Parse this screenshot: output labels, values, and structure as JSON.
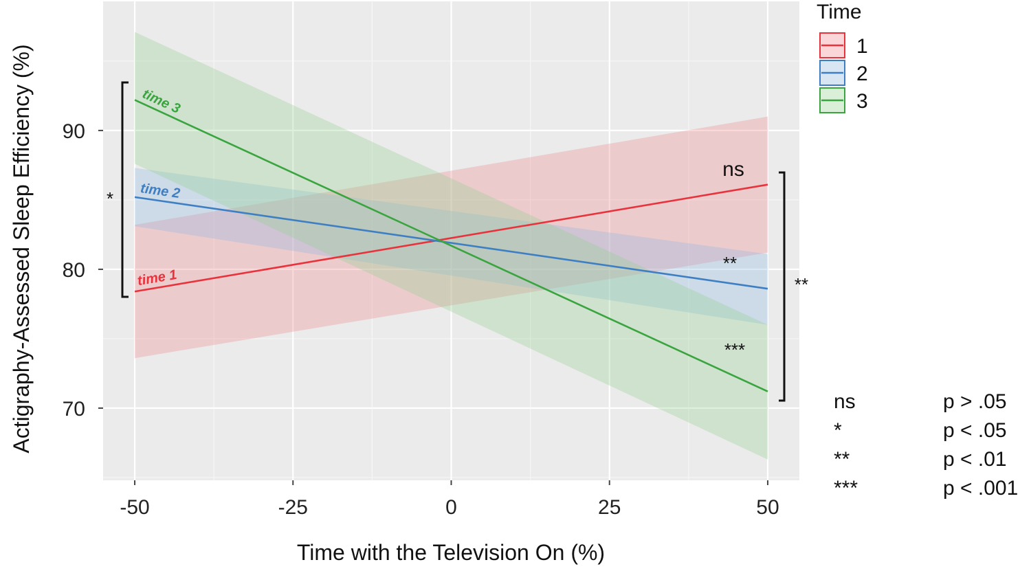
{
  "chart_data": {
    "type": "line",
    "title": "",
    "xlabel": "Time with the Television On (%)",
    "ylabel": "Actigraphy-Assessed Sleep Efficiency (%)",
    "xlim": [
      -55,
      55
    ],
    "ylim": [
      64.8,
      99.3
    ],
    "x_ticks": [
      -50,
      -25,
      0,
      25,
      50
    ],
    "x_tick_labels": [
      "-50",
      "-25",
      "0",
      "25",
      "50"
    ],
    "y_ticks": [
      70,
      80,
      90
    ],
    "y_tick_labels": [
      "70",
      "80",
      "90"
    ],
    "grid": true,
    "legend_title": "Time",
    "legend_position": "right",
    "series": [
      {
        "name": "1",
        "label": "time 1",
        "color": "#e8323c",
        "band_color": "#f08a8f",
        "x": [
          -50,
          50
        ],
        "y": [
          78.4,
          86.1
        ],
        "lower": [
          73.6,
          81.2
        ],
        "upper": [
          83.2,
          91.0
        ]
      },
      {
        "name": "2",
        "label": "time 2",
        "color": "#3d7fc2",
        "band_color": "#8fb8e0",
        "x": [
          -50,
          50
        ],
        "y": [
          85.2,
          78.6
        ],
        "lower": [
          83.1,
          76.0
        ],
        "upper": [
          87.3,
          81.1
        ]
      },
      {
        "name": "3",
        "label": "time 3",
        "color": "#3aa43f",
        "band_color": "#93d08f",
        "x": [
          -50,
          50
        ],
        "y": [
          92.2,
          71.2
        ],
        "lower": [
          87.6,
          66.3
        ],
        "upper": [
          97.1,
          76.0
        ]
      }
    ],
    "significance": {
      "time1_slope": "ns",
      "time2_slope": "**",
      "time3_slope": "***",
      "left_bracket": "*",
      "right_bracket": "**"
    },
    "key": [
      {
        "symbol": "ns",
        "meaning": "p > .05"
      },
      {
        "symbol": "*",
        "meaning": "p < .05"
      },
      {
        "symbol": "**",
        "meaning": "p < .01"
      },
      {
        "symbol": "***",
        "meaning": "p < .001"
      }
    ]
  }
}
